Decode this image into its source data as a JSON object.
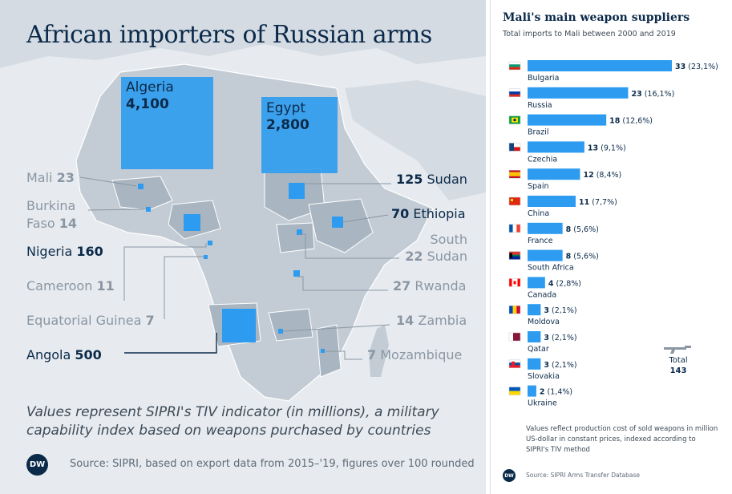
{
  "map": {
    "title": "African importers of Russian arms",
    "note": "Values represent SIPRI's TIV indicator (in millions), a military capability index based on weapons purchased by countries",
    "source": "Source: SIPRI, based on export data from 2015–'19, figures over 100 rounded",
    "logo": "DW",
    "countries": [
      {
        "name": "Algeria",
        "value": "4,100",
        "num": 4100
      },
      {
        "name": "Egypt",
        "value": "2,800",
        "num": 2800
      },
      {
        "name": "Mali",
        "value": "23",
        "num": 23
      },
      {
        "name": "Burkina Faso",
        "line1": "Burkina",
        "line2": "Faso",
        "value": "14",
        "num": 14
      },
      {
        "name": "Nigeria",
        "value": "160",
        "num": 160
      },
      {
        "name": "Cameroon",
        "value": "11",
        "num": 11
      },
      {
        "name": "Equatorial Guinea",
        "value": "7",
        "num": 7
      },
      {
        "name": "Angola",
        "value": "500",
        "num": 500
      },
      {
        "name": "Sudan",
        "value": "125",
        "num": 125
      },
      {
        "name": "Ethiopia",
        "value": "70",
        "num": 70
      },
      {
        "name": "South Sudan",
        "line1": "South",
        "line2": "Sudan",
        "value": "22",
        "num": 22
      },
      {
        "name": "Rwanda",
        "value": "27",
        "num": 27
      },
      {
        "name": "Zambia",
        "value": "14",
        "num": 14
      },
      {
        "name": "Mozambique",
        "value": "7",
        "num": 7
      }
    ]
  },
  "suppliers": {
    "title": "Mali's main weapon suppliers",
    "subtitle": "Total imports to Mali between 2000 and 2019",
    "total_label": "Total",
    "total_value": "143",
    "note": "Values reflect production cost of sold weapons in million US-dollar in constant prices, indexed according to SIPRI's TIV method",
    "source": "Source: SIPRI Arms Transfer Database",
    "logo": "DW",
    "colors": {
      "bar": "#2d9cf0",
      "text": "#0b2a4a",
      "accent_box": "#3ba3f2"
    }
  },
  "chart_data": {
    "type": "bar",
    "title": "Mali's main weapon suppliers",
    "subtitle": "Total imports to Mali between 2000 and 2019",
    "orientation": "horizontal",
    "categories": [
      "Bulgaria",
      "Russia",
      "Brazil",
      "Czechia",
      "Spain",
      "China",
      "France",
      "South Africa",
      "Canada",
      "Moldova",
      "Qatar",
      "Slovakia",
      "Ukraine"
    ],
    "values": [
      33,
      23,
      18,
      13,
      12,
      11,
      8,
      8,
      4,
      3,
      3,
      3,
      2
    ],
    "percent_labels": [
      "(23,1%)",
      "(16,1%)",
      "(12,6%)",
      "(9,1%)",
      "(8,4%)",
      "(7,7%)",
      "(5,6%)",
      "(5,6%)",
      "(2,8%)",
      "(2,1%)",
      "(2,1%)",
      "(2,1%)",
      "(1,4%)"
    ],
    "flag_icons": [
      "bulgaria-flag-icon",
      "russia-flag-icon",
      "brazil-flag-icon",
      "czechia-flag-icon",
      "spain-flag-icon",
      "china-flag-icon",
      "france-flag-icon",
      "south-africa-flag-icon",
      "canada-flag-icon",
      "moldova-flag-icon",
      "qatar-flag-icon",
      "slovakia-flag-icon",
      "ukraine-flag-icon"
    ],
    "xlim": [
      0,
      33
    ],
    "grid": false,
    "legend": "none"
  }
}
